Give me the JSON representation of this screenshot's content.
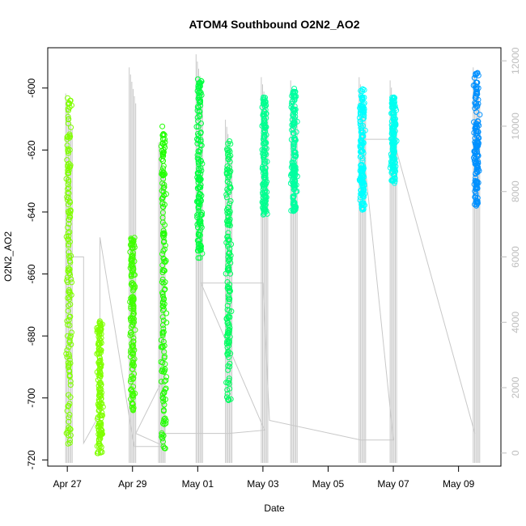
{
  "chart_data": {
    "type": "scatter",
    "title": "ATOM4 Southbound O2N2_AO2",
    "xlabel": "Date",
    "ylabel": "O2N2_AO2",
    "x_ticks": [
      "Apr 27",
      "Apr 29",
      "May 01",
      "May 03",
      "May 05",
      "May 07",
      "May 09"
    ],
    "y_ticks": [
      -600,
      -620,
      -640,
      -660,
      -680,
      -700,
      -720
    ],
    "y2_ticks": [
      0,
      2000,
      4000,
      6000,
      8000,
      10000,
      12000
    ],
    "xlim_days": [
      -0.6,
      13.3
    ],
    "ylim": [
      -722,
      -587
    ],
    "y2lim": [
      -400,
      12400
    ],
    "grid": false,
    "legend": "none",
    "colors": {
      "points_scale": [
        "#80ff00",
        "#00ff00",
        "#00ff80",
        "#00ffff",
        "#0080ff"
      ],
      "depth_line": "#c8c8c8",
      "axis": "#000000",
      "right_axis": "#bdbdbd"
    },
    "series": [
      {
        "day": 0.05,
        "ymin": -715,
        "ymax": -603,
        "color": "#80ff00"
      },
      {
        "day": 1.0,
        "ymin": -718,
        "ymax": -675,
        "color": "#80ff00"
      },
      {
        "day": 2.0,
        "ymin": -704,
        "ymax": -648,
        "color": "#40ff00"
      },
      {
        "day": 2.95,
        "ymin": -718,
        "ymax": -612,
        "color": "#20ff00"
      },
      {
        "day": 4.05,
        "ymin": -655,
        "ymax": -597,
        "color": "#00ff40"
      },
      {
        "day": 4.95,
        "ymin": -701,
        "ymax": -617,
        "color": "#00ff60"
      },
      {
        "day": 6.05,
        "ymin": -641,
        "ymax": -603,
        "color": "#00ff90"
      },
      {
        "day": 6.95,
        "ymin": -640,
        "ymax": -600,
        "color": "#00ffa0"
      },
      {
        "day": 9.05,
        "ymin": -640,
        "ymax": -600,
        "color": "#00ffff"
      },
      {
        "day": 10.0,
        "ymin": -631,
        "ymax": -603,
        "color": "#00fff0"
      },
      {
        "day": 12.55,
        "ymin": -638,
        "ymax": -595,
        "color": "#0090ff"
      }
    ],
    "depth_profile": {
      "axis": "right",
      "casts": [
        {
          "day": 0.05,
          "max": 11000
        },
        {
          "day": 2.0,
          "max": 11800
        },
        {
          "day": 2.9,
          "max": 9500
        },
        {
          "day": 4.05,
          "max": 12200
        },
        {
          "day": 4.95,
          "max": 10200
        },
        {
          "day": 6.05,
          "max": 11500
        },
        {
          "day": 6.95,
          "max": 11400
        },
        {
          "day": 9.05,
          "max": 11500
        },
        {
          "day": 10.0,
          "max": 11400
        },
        {
          "day": 12.55,
          "max": 11800
        }
      ],
      "connector": [
        [
          0.0,
          6000
        ],
        [
          0.5,
          6000
        ],
        [
          0.5,
          300
        ],
        [
          1.0,
          1200
        ],
        [
          1.0,
          6600
        ],
        [
          2.0,
          500
        ],
        [
          2.05,
          200
        ],
        [
          3.0,
          200
        ],
        [
          2.1,
          600
        ],
        [
          2.9,
          2200
        ],
        [
          3.0,
          600
        ],
        [
          4.0,
          600
        ],
        [
          4.05,
          600
        ],
        [
          4.95,
          600
        ],
        [
          6.05,
          700
        ],
        [
          4.1,
          5200
        ],
        [
          6.0,
          5200
        ],
        [
          6.2,
          1000
        ],
        [
          9.0,
          400
        ],
        [
          10.0,
          400
        ],
        [
          9.05,
          9600
        ],
        [
          10.0,
          9600
        ],
        [
          12.5,
          600
        ]
      ]
    }
  }
}
